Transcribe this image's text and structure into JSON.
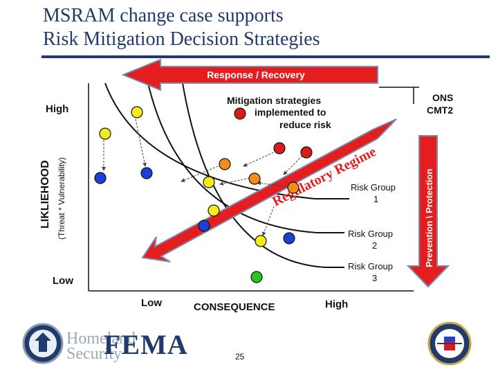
{
  "title": {
    "line1": "MSRAM change case supports",
    "line2": "Risk Mitigation Decision Strategies"
  },
  "arrows": {
    "response": "Response / Recovery",
    "prevention": "Prevention \\ Protection",
    "regulatory": "Regulatory Regime"
  },
  "axes": {
    "y_title": "LIKLIEHOOD",
    "y_subtitle": "(Threat * Vulnerability)",
    "y_high": "High",
    "y_low": "Low",
    "x_title": "CONSEQUENCE",
    "x_low": "Low",
    "x_high": "High"
  },
  "labels": {
    "mitigation_line1": "Mitigation strategies",
    "mitigation_line2": "implemented to",
    "mitigation_line3": "reduce risk",
    "ons_line1": "ONS",
    "ons_line2": "CMT2",
    "rg1_line1": "Risk Group",
    "rg1_line2": "1",
    "rg2_line1": "Risk Group",
    "rg2_line2": "2",
    "rg3_line1": "Risk Group",
    "rg3_line2": "3"
  },
  "colors": {
    "red": "#d81b1b",
    "orange": "#f28c1c",
    "yellow": "#f5ea1c",
    "blue": "#1c3fd6",
    "green": "#22c81e",
    "arrow_red": "#e41e1e",
    "title_blue": "#1f3a6b"
  },
  "footer": {
    "page_number": "25",
    "fema": "FEMA",
    "homeland_line1": "Homeland",
    "homeland_line2": "Security"
  },
  "logos": {
    "dhs_seal": "department-of-homeland-security-seal-icon",
    "uscg_seal": "us-coast-guard-seal-icon"
  }
}
